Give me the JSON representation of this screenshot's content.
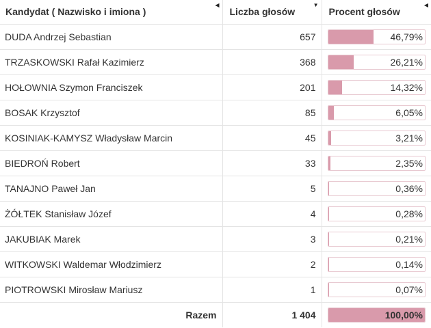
{
  "header": {
    "col_candidate": "Kandydat ( Nazwisko i imiona )",
    "col_votes": "Liczba głosów",
    "col_percent": "Procent głosów"
  },
  "rows": [
    {
      "name": "DUDA Andrzej Sebastian",
      "votes": "657",
      "percent": "46,79%",
      "fraction": 0.4679
    },
    {
      "name": "TRZASKOWSKI Rafał Kazimierz",
      "votes": "368",
      "percent": "26,21%",
      "fraction": 0.2621
    },
    {
      "name": "HOŁOWNIA Szymon Franciszek",
      "votes": "201",
      "percent": "14,32%",
      "fraction": 0.1432
    },
    {
      "name": "BOSAK Krzysztof",
      "votes": "85",
      "percent": "6,05%",
      "fraction": 0.0605
    },
    {
      "name": "KOSINIAK-KAMYSZ Władysław Marcin",
      "votes": "45",
      "percent": "3,21%",
      "fraction": 0.0321
    },
    {
      "name": "BIEDROŃ Robert",
      "votes": "33",
      "percent": "2,35%",
      "fraction": 0.0235
    },
    {
      "name": "TANAJNO Paweł Jan",
      "votes": "5",
      "percent": "0,36%",
      "fraction": 0.0036
    },
    {
      "name": "ŻÓŁTEK Stanisław Józef",
      "votes": "4",
      "percent": "0,28%",
      "fraction": 0.0028
    },
    {
      "name": "JAKUBIAK Marek",
      "votes": "3",
      "percent": "0,21%",
      "fraction": 0.0021
    },
    {
      "name": "WITKOWSKI Waldemar Włodzimierz",
      "votes": "2",
      "percent": "0,14%",
      "fraction": 0.0014
    },
    {
      "name": "PIOTROWSKI Mirosław Mariusz",
      "votes": "1",
      "percent": "0,07%",
      "fraction": 0.0007
    }
  ],
  "footer": {
    "label": "Razem",
    "votes": "1 404",
    "percent": "100,00%",
    "fraction": 1.0
  },
  "colors": {
    "bar_fill": "#d99aab",
    "bar_border": "#e8c9d1"
  }
}
